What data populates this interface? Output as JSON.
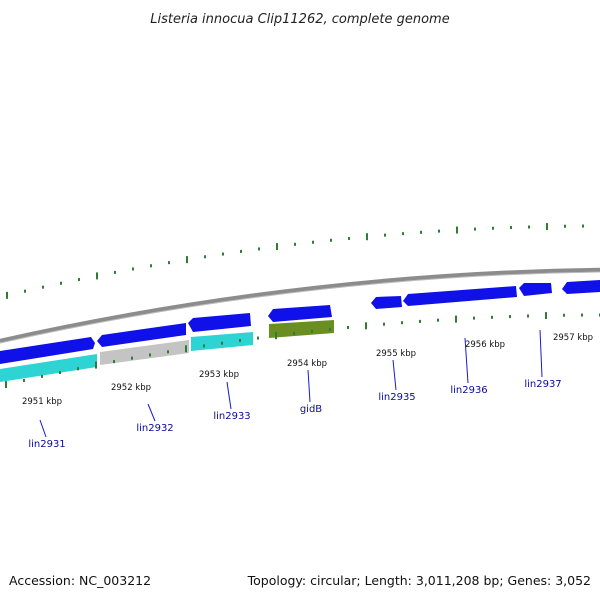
{
  "title": "Listeria innocua Clip11262, complete genome",
  "footer": {
    "accession": "Accession: NC_003212",
    "topology": "Topology: circular; Length: 3,011,208 bp; Genes: 3,052"
  },
  "colors": {
    "blue": "#1010e8",
    "cyan": "#2ed3d3",
    "gray": "#c4c4c4",
    "olive": "#6b8e23",
    "tick": "#2e7d32",
    "backbone": "#888888",
    "label": "#0a0aa0"
  },
  "scale_labels": [
    "2951 kbp",
    "2952 kbp",
    "2953 kbp",
    "2954 kbp",
    "2955 kbp",
    "2956 kbp",
    "2957 kbp"
  ],
  "gene_labels": [
    "lin2931",
    "lin2932",
    "lin2933",
    "gidB",
    "lin2935",
    "lin2936",
    "lin2937"
  ]
}
